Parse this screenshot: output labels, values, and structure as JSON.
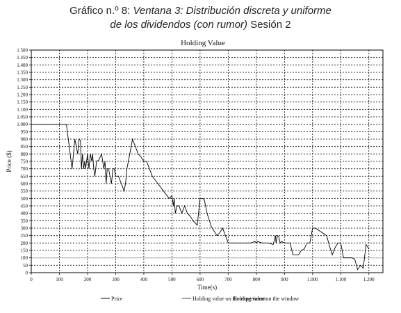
{
  "figure": {
    "heading_prefix": "Gráfico n.º 8: ",
    "heading_italic_1": "Ventana 3: Distribución discreta y uniforme",
    "heading_italic_2": "de los dividendos (con rumor)",
    "heading_suffix": " Sesión 2"
  },
  "chart_data": {
    "type": "line",
    "title": "Holding Value",
    "xlabel": "Time(s)",
    "ylabel": "Price ($)",
    "xlim": [
      0,
      1250
    ],
    "ylim": [
      0,
      1500
    ],
    "x_ticks": [
      0,
      100,
      200,
      300,
      400,
      500,
      600,
      700,
      800,
      900,
      1000,
      1100,
      1200
    ],
    "x_tick_labels": [
      "0",
      "100",
      "200",
      "300",
      "400",
      "500",
      "600",
      "700",
      "800",
      "900",
      "1.000",
      "1.100",
      "1.200"
    ],
    "y_ticks": [
      0,
      50,
      100,
      150,
      200,
      250,
      300,
      350,
      400,
      450,
      500,
      550,
      600,
      650,
      700,
      750,
      800,
      850,
      900,
      950,
      1000,
      1050,
      1100,
      1150,
      1200,
      1250,
      1300,
      1350,
      1400,
      1450,
      1500
    ],
    "y_tick_labels": [
      "0",
      "50",
      "100",
      "150",
      "200",
      "250",
      "300",
      "350",
      "400",
      "450",
      "500",
      "550",
      "600",
      "650",
      "700",
      "750",
      "800",
      "850",
      "900",
      "950",
      "1.000",
      "1.050",
      "1.100",
      "1.150",
      "1.200",
      "1.250",
      "1.300",
      "1.350",
      "1.400",
      "1.450",
      "1.500"
    ],
    "grid": true,
    "legend_position": "bottom",
    "series": [
      {
        "name": "Price",
        "color": "#000000",
        "style": "solid",
        "x": [
          0,
          50,
          80,
          120,
          125,
          145,
          155,
          165,
          170,
          175,
          178,
          182,
          186,
          190,
          193,
          200,
          205,
          210,
          215,
          218,
          222,
          226,
          232,
          240,
          250,
          258,
          262,
          266,
          268,
          270,
          275,
          280,
          285,
          290,
          295,
          300,
          310,
          330,
          335,
          340,
          345,
          360,
          370,
          380,
          390,
          400,
          410,
          420,
          430,
          450,
          470,
          490,
          500,
          505,
          508,
          512,
          518,
          525,
          535,
          545,
          555,
          565,
          575,
          590,
          600,
          610,
          615,
          625,
          640,
          650,
          660,
          670,
          680,
          700,
          710,
          720,
          740,
          760,
          780,
          795,
          800,
          805,
          820,
          840,
          860,
          868,
          870,
          875,
          880,
          885,
          890,
          900,
          920,
          930,
          950,
          960,
          970,
          980,
          990,
          1000,
          1010,
          1050,
          1060,
          1070,
          1080,
          1090,
          1100,
          1110,
          1120,
          1140,
          1150,
          1160,
          1170,
          1180,
          1190,
          1200
        ],
        "y": [
          1000,
          1000,
          1000,
          1000,
          1000,
          700,
          900,
          800,
          900,
          890,
          700,
          800,
          700,
          750,
          700,
          800,
          700,
          800,
          750,
          800,
          700,
          650,
          750,
          760,
          800,
          700,
          750,
          600,
          650,
          700,
          700,
          650,
          600,
          700,
          700,
          650,
          650,
          550,
          600,
          700,
          750,
          900,
          850,
          800,
          780,
          750,
          750,
          700,
          650,
          600,
          550,
          500,
          520,
          450,
          500,
          400,
          450,
          450,
          400,
          450,
          400,
          380,
          350,
          320,
          500,
          500,
          490,
          400,
          310,
          280,
          250,
          270,
          300,
          200,
          200,
          200,
          200,
          200,
          200,
          210,
          200,
          210,
          200,
          200,
          190,
          250,
          200,
          250,
          240,
          200,
          210,
          200,
          200,
          120,
          120,
          150,
          160,
          200,
          200,
          300,
          300,
          250,
          180,
          120,
          170,
          200,
          200,
          100,
          100,
          100,
          90,
          20,
          50,
          30,
          190,
          160
        ]
      },
      {
        "name": "Holding value on the experiment",
        "color": "#444444",
        "style": "solid",
        "x": [],
        "y": []
      },
      {
        "name": "Holding value on the window",
        "color": "#bdbdbd",
        "style": "solid",
        "x": [
          0,
          1250
        ],
        "y": [
          100,
          100
        ]
      }
    ]
  }
}
